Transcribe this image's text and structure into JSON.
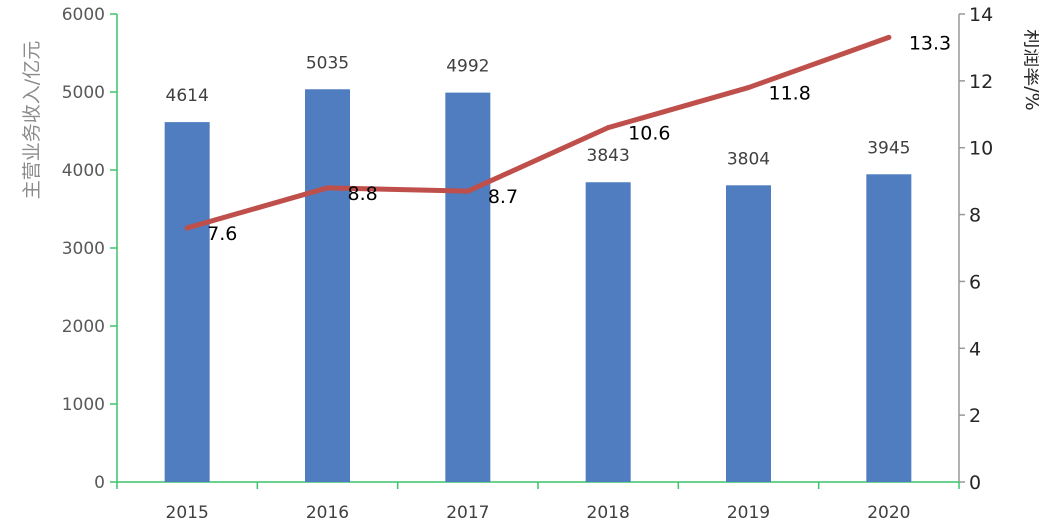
{
  "chart_data": {
    "type": "bar",
    "categories": [
      "2015",
      "2016",
      "2017",
      "2018",
      "2019",
      "2020"
    ],
    "series": [
      {
        "type": "bar",
        "axis": "left",
        "values": [
          4614,
          5035,
          4992,
          3843,
          3804,
          3945
        ]
      },
      {
        "type": "line",
        "axis": "right",
        "values": [
          7.6,
          8.8,
          8.7,
          10.6,
          11.8,
          13.3
        ]
      }
    ],
    "ylabel": "主营业务收入/亿元",
    "y2label": "利润率/%",
    "ylim": [
      0,
      6000
    ],
    "y2lim": [
      0,
      14
    ],
    "yticks": [
      0,
      1000,
      2000,
      3000,
      4000,
      5000,
      6000
    ],
    "y2ticks": [
      0,
      2,
      4,
      6,
      8,
      10,
      12,
      14
    ],
    "bar_data_labels": [
      "4614",
      "5035",
      "4992",
      "3843",
      "3804",
      "3945"
    ],
    "line_data_labels": [
      "7.6",
      "8.8",
      "8.7",
      "10.6",
      "11.8",
      "13.3"
    ],
    "grid": false,
    "legend": "none",
    "colors": {
      "bar": "#4f7dbf",
      "line": "#bf4f4b",
      "axis": "#3cc46b",
      "right_axis": "#999999"
    }
  }
}
